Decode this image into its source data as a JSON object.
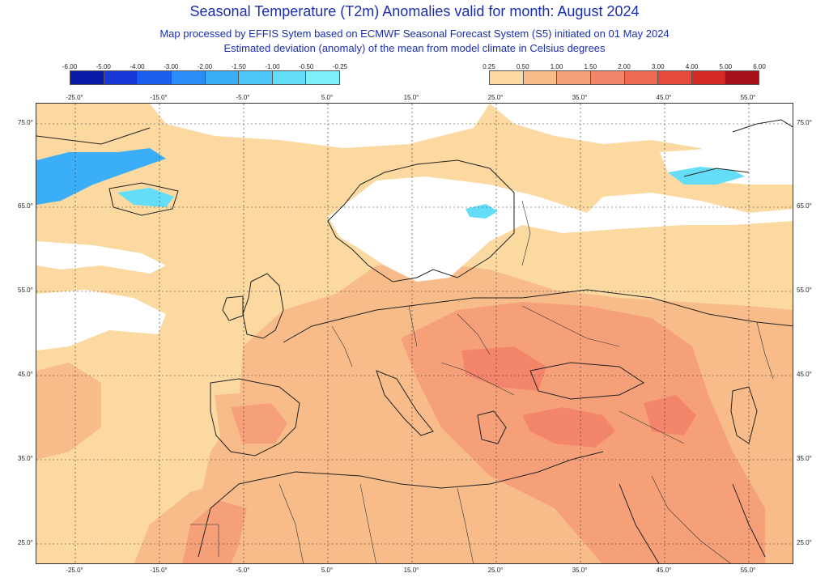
{
  "header": {
    "title": "Seasonal Temperature (T2m) Anomalies valid for month: August 2024",
    "subtitle_1": "Map processed by EFFIS Sytem based on ECMWF Seasonal Forecast System (S5) initiated on 01 May 2024",
    "subtitle_2": "Estimated deviation (anomaly) of the mean from model climate in Celsius degrees"
  },
  "legend_negative": {
    "ticks": [
      "-6.00",
      "-5.00",
      "-4.00",
      "-3.00",
      "-2.00",
      "-1.50",
      "-1.00",
      "-0.50",
      "-0.25"
    ],
    "colors": [
      "#0a1aa8",
      "#1838d8",
      "#1a5ef0",
      "#2a8cf6",
      "#3aaef8",
      "#4cc8f8",
      "#64def8",
      "#7cf0f8"
    ]
  },
  "legend_positive": {
    "ticks": [
      "0.25",
      "0.50",
      "1.00",
      "1.50",
      "2.00",
      "3.00",
      "4.00",
      "5.00",
      "6.00"
    ],
    "colors": [
      "#fbd9a0",
      "#f8bc8a",
      "#f6a07a",
      "#f3866a",
      "#ef6a52",
      "#e64a3a",
      "#d42a26",
      "#a8101a"
    ]
  },
  "map": {
    "longitude_labels_top": [
      "-25.0°",
      "-15.0°",
      "-5.0°",
      "5.0°",
      "15.0°",
      "25.0°",
      "35.0°",
      "45.0°",
      "55.0°"
    ],
    "longitude_labels_bottom": [
      "-25.0°",
      "-15.0°",
      "-5.0°",
      "5.0°",
      "15.0°",
      "25.0°",
      "35.0°",
      "45.0°",
      "55.0°"
    ],
    "latitude_labels_left": [
      "75.0°",
      "65.0°",
      "55.0°",
      "45.0°",
      "35.0°",
      "25.0°"
    ],
    "latitude_labels_right": [
      "75.0°",
      "65.0°",
      "55.0°",
      "45.0°",
      "35.0°",
      "25.0°"
    ],
    "base_anomaly_color": "#fbd9a0",
    "land_warm_color": "#f8bc8a",
    "hot_color": "#f6a07a",
    "hotter_color": "#f3866a",
    "no_anomaly_color": "#ffffff",
    "cold_color": "#3aaef8",
    "colder_color": "#64def8"
  }
}
